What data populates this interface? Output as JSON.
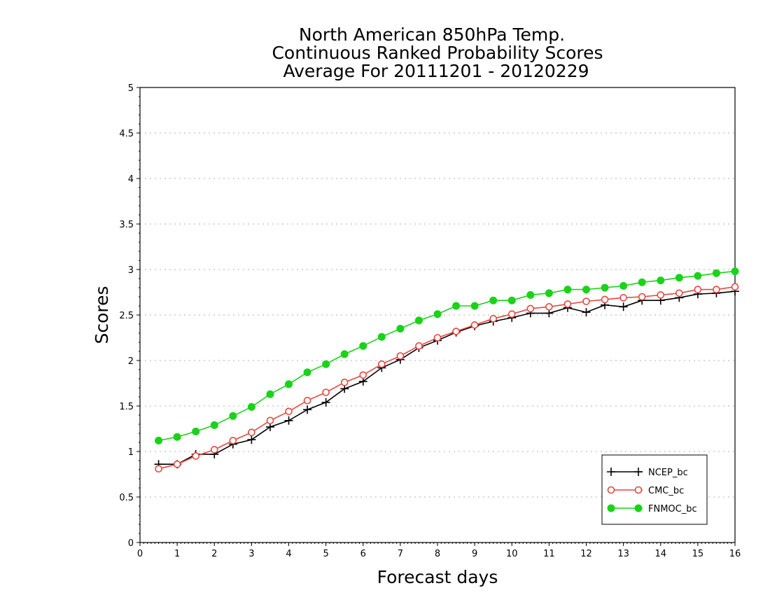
{
  "chart_data": {
    "type": "line",
    "title": [
      "North American 850hPa Temp.",
      "Continuous Ranked Probability Scores",
      "Average For 20111201 - 20120229"
    ],
    "xlabel": "Forecast days",
    "ylabel": "Scores",
    "xlim": [
      0,
      16
    ],
    "ylim": [
      0,
      5
    ],
    "xticks": [
      "0",
      "1",
      "2",
      "3",
      "4",
      "5",
      "6",
      "7",
      "8",
      "9",
      "10",
      "11",
      "12",
      "13",
      "14",
      "15",
      "16"
    ],
    "yticks": [
      "0",
      "0.5",
      "1",
      "1.5",
      "2",
      "2.5",
      "3",
      "3.5",
      "4",
      "4.5",
      "5"
    ],
    "grid": true,
    "legend_position": "bottom-right",
    "x": [
      0.5,
      1,
      1.5,
      2,
      2.5,
      3,
      3.5,
      4,
      4.5,
      5,
      5.5,
      6,
      6.5,
      7,
      7.5,
      8,
      8.5,
      9,
      9.5,
      10,
      10.5,
      11,
      11.5,
      12,
      12.5,
      13,
      13.5,
      14,
      14.5,
      15,
      15.5,
      16
    ],
    "series": [
      {
        "name": "NCEP_bc",
        "color": "#000000",
        "marker": "plus",
        "values": [
          0.86,
          0.86,
          0.97,
          0.97,
          1.08,
          1.13,
          1.27,
          1.34,
          1.46,
          1.54,
          1.69,
          1.77,
          1.92,
          2.01,
          2.14,
          2.22,
          2.31,
          2.38,
          2.43,
          2.47,
          2.52,
          2.52,
          2.58,
          2.53,
          2.61,
          2.59,
          2.66,
          2.66,
          2.69,
          2.73,
          2.74,
          2.76
        ]
      },
      {
        "name": "CMC_bc",
        "color": "#e8473f",
        "marker": "open-circle",
        "values": [
          0.81,
          0.86,
          0.95,
          1.02,
          1.12,
          1.21,
          1.34,
          1.44,
          1.56,
          1.65,
          1.76,
          1.84,
          1.96,
          2.05,
          2.16,
          2.25,
          2.32,
          2.39,
          2.46,
          2.51,
          2.57,
          2.59,
          2.62,
          2.65,
          2.67,
          2.69,
          2.7,
          2.72,
          2.74,
          2.78,
          2.78,
          2.81
        ]
      },
      {
        "name": "FNMOC_bc",
        "color": "#19d319",
        "marker": "filled-circle",
        "values": [
          1.12,
          1.16,
          1.22,
          1.29,
          1.39,
          1.49,
          1.63,
          1.74,
          1.87,
          1.96,
          2.07,
          2.16,
          2.26,
          2.35,
          2.44,
          2.51,
          2.6,
          2.6,
          2.66,
          2.66,
          2.72,
          2.74,
          2.78,
          2.78,
          2.8,
          2.82,
          2.86,
          2.88,
          2.91,
          2.93,
          2.96,
          2.98
        ]
      }
    ]
  }
}
